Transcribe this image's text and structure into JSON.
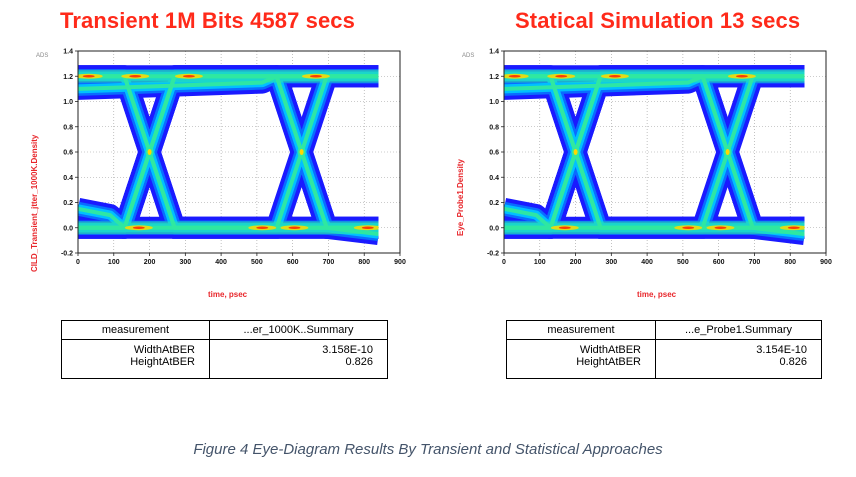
{
  "caption": "Figure 4 Eye-Diagram Results By Transient and Statistical Approaches",
  "panels": [
    {
      "title": "Transient  1M Bits 4587 secs",
      "ads": "ADS",
      "ylabel": "CILD_Transient_jtter_1000K.Density",
      "xlabel": "time, psec",
      "table": {
        "header_left": "measurement",
        "header_right": "...er_1000K..Summary",
        "rows": [
          {
            "name": "WidthAtBER",
            "value": "3.158E-10"
          },
          {
            "name": "HeightAtBER",
            "value": "0.826"
          }
        ]
      }
    },
    {
      "title": "Statical Simulation  13 secs",
      "ads": "ADS",
      "ylabel": "Eye_Probe1.Density",
      "xlabel": "time, psec",
      "table": {
        "header_left": "measurement",
        "header_right": "...e_Probe1.Summary",
        "rows": [
          {
            "name": "WidthAtBER",
            "value": "3.154E-10"
          },
          {
            "name": "HeightAtBER",
            "value": "0.826"
          }
        ]
      }
    }
  ],
  "chart_data": [
    {
      "type": "eye-diagram",
      "title": "Transient  1M Bits 4587 secs",
      "xlabel": "time, psec",
      "ylabel": "CILD_Transient_jtter_1000K.Density",
      "xlim": [
        0,
        900
      ],
      "ylim": [
        -0.2,
        1.4
      ],
      "xticks": [
        0,
        100,
        200,
        300,
        400,
        500,
        600,
        700,
        800,
        900
      ],
      "yticks": [
        -0.2,
        0.0,
        0.2,
        0.4,
        0.6,
        0.8,
        1.0,
        1.2,
        1.4
      ],
      "data_extent_x": [
        0,
        840
      ],
      "levels": {
        "high": 1.2,
        "low": 0.0
      },
      "crossings_psec": [
        200,
        625
      ],
      "crossing_level": 0.6,
      "measurements": {
        "WidthAtBER": "3.158E-10",
        "HeightAtBER": "0.826"
      }
    },
    {
      "type": "eye-diagram",
      "title": "Statical Simulation  13 secs",
      "xlabel": "time, psec",
      "ylabel": "Eye_Probe1.Density",
      "xlim": [
        0,
        900
      ],
      "ylim": [
        -0.2,
        1.4
      ],
      "xticks": [
        0,
        100,
        200,
        300,
        400,
        500,
        600,
        700,
        800,
        900
      ],
      "yticks": [
        -0.2,
        0.0,
        0.2,
        0.4,
        0.6,
        0.8,
        1.0,
        1.2,
        1.4
      ],
      "data_extent_x": [
        0,
        840
      ],
      "levels": {
        "high": 1.2,
        "low": 0.0
      },
      "crossings_psec": [
        200,
        625
      ],
      "crossing_level": 0.6,
      "measurements": {
        "WidthAtBER": "3.154E-10",
        "HeightAtBER": "0.826"
      }
    }
  ],
  "colors": {
    "title": "#ff2a1a",
    "label": "#e8262b",
    "caption": "#44546a",
    "density_outer": "#1a1aff",
    "density_mid": "#00c0ff",
    "density_inner": "#30e8a0",
    "density_hot": "#ffd800",
    "density_peak": "#ff2a00"
  }
}
